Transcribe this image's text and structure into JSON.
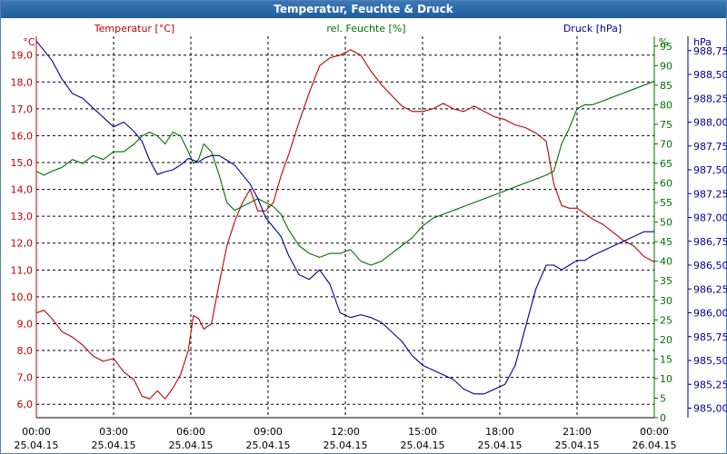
{
  "window": {
    "title": "Temperatur, Feuchte & Druck"
  },
  "chart_data": {
    "type": "line",
    "title": "Temperatur, Feuchte & Druck",
    "colors": {
      "temperature": "#c00000",
      "humidity": "#007000",
      "pressure": "#000096",
      "grid": "#000000",
      "titlebar": "#2a66a6"
    },
    "x_ticks": [
      {
        "time": "00:00",
        "date": "25.04.15",
        "h": 0
      },
      {
        "time": "03:00",
        "date": "25.04.15",
        "h": 3
      },
      {
        "time": "06:00",
        "date": "25.04.15",
        "h": 6
      },
      {
        "time": "09:00",
        "date": "25.04.15",
        "h": 9
      },
      {
        "time": "12:00",
        "date": "25.04.15",
        "h": 12
      },
      {
        "time": "15:00",
        "date": "25.04.15",
        "h": 15
      },
      {
        "time": "18:00",
        "date": "25.04.15",
        "h": 18
      },
      {
        "time": "21:00",
        "date": "25.04.15",
        "h": 21
      },
      {
        "time": "00:00",
        "date": "26.04.15",
        "h": 24
      }
    ],
    "xlim": [
      0,
      24
    ],
    "axes": {
      "temperature": {
        "label": "Temperatur [°C]",
        "unit": "°C",
        "ylim": [
          5.5,
          19.7
        ],
        "ticks": [
          "6,0",
          "7,0",
          "8,0",
          "9,0",
          "10,0",
          "11,0",
          "12,0",
          "13,0",
          "14,0",
          "15,0",
          "16,0",
          "17,0",
          "18,0",
          "19,0"
        ]
      },
      "humidity": {
        "label": "rel. Feuchte [%]",
        "unit": "%",
        "ylim": [
          0,
          97.5
        ],
        "ticks": [
          "0",
          "5",
          "10",
          "15",
          "20",
          "25",
          "30",
          "35",
          "40",
          "45",
          "50",
          "55",
          "60",
          "65",
          "70",
          "75",
          "80",
          "85",
          "90",
          "95"
        ]
      },
      "pressure": {
        "label": "Druck [hPa]",
        "unit": "hPa",
        "ylim": [
          984.9,
          988.9
        ],
        "ticks": [
          "985,00",
          "985,25",
          "985,50",
          "985,75",
          "986,00",
          "986,25",
          "986,50",
          "986,75",
          "987,00",
          "987,25",
          "987,50",
          "987,75",
          "988,00",
          "988,25",
          "988,50",
          "988,75"
        ]
      }
    },
    "series": [
      {
        "name": "Temperatur [°C]",
        "axis": "temperature",
        "x": [
          0,
          0.3,
          0.6,
          1.0,
          1.4,
          1.8,
          2.2,
          2.6,
          3.0,
          3.4,
          3.8,
          4.1,
          4.4,
          4.7,
          5.0,
          5.3,
          5.6,
          5.9,
          6.1,
          6.3,
          6.5,
          6.8,
          7.1,
          7.4,
          7.7,
          8.0,
          8.3,
          8.6,
          8.9,
          9.2,
          9.5,
          9.8,
          10.2,
          10.6,
          11.0,
          11.4,
          11.8,
          12.2,
          12.6,
          13.0,
          13.4,
          13.8,
          14.2,
          14.6,
          15.0,
          15.4,
          15.8,
          16.2,
          16.6,
          17.0,
          17.4,
          17.8,
          18.2,
          18.6,
          19.0,
          19.4,
          19.8,
          20.1,
          20.4,
          20.7,
          21.0,
          21.3,
          21.6,
          22.0,
          22.4,
          22.8,
          23.2,
          23.6,
          24.0
        ],
        "values": [
          9.4,
          9.5,
          9.2,
          8.7,
          8.5,
          8.2,
          7.8,
          7.6,
          7.7,
          7.2,
          6.9,
          6.3,
          6.2,
          6.5,
          6.2,
          6.6,
          7.1,
          8.0,
          9.3,
          9.2,
          8.8,
          9.0,
          10.5,
          11.9,
          12.8,
          13.5,
          14.0,
          13.2,
          13.2,
          13.5,
          14.5,
          15.3,
          16.5,
          17.6,
          18.6,
          18.9,
          19.0,
          19.2,
          19.0,
          18.4,
          17.9,
          17.5,
          17.1,
          16.9,
          16.9,
          17.0,
          17.2,
          17.0,
          16.9,
          17.1,
          16.9,
          16.7,
          16.6,
          16.4,
          16.3,
          16.1,
          15.8,
          14.2,
          13.4,
          13.3,
          13.3,
          13.1,
          12.9,
          12.7,
          12.4,
          12.1,
          11.9,
          11.5,
          11.3
        ]
      },
      {
        "name": "rel. Feuchte [%]",
        "axis": "humidity",
        "x": [
          0,
          0.3,
          0.6,
          1.0,
          1.4,
          1.8,
          2.2,
          2.6,
          3.0,
          3.4,
          3.8,
          4.1,
          4.4,
          4.7,
          5.0,
          5.3,
          5.6,
          5.9,
          6.1,
          6.3,
          6.5,
          6.8,
          7.1,
          7.4,
          7.7,
          8.0,
          8.3,
          8.6,
          8.9,
          9.2,
          9.5,
          9.8,
          10.2,
          10.6,
          11.0,
          11.4,
          11.8,
          12.2,
          12.6,
          13.0,
          13.4,
          13.8,
          14.2,
          14.6,
          15.0,
          15.4,
          15.8,
          16.2,
          16.6,
          17.0,
          17.4,
          17.8,
          18.2,
          18.6,
          19.0,
          19.4,
          19.8,
          20.1,
          20.4,
          20.7,
          21.0,
          21.3,
          21.6,
          22.0,
          22.4,
          22.8,
          23.2,
          23.6,
          24.0
        ],
        "values": [
          63,
          62,
          63,
          64,
          66,
          65,
          67,
          66,
          68,
          68,
          70,
          72,
          73,
          72,
          70,
          73,
          72,
          68,
          65,
          66,
          70,
          68,
          62,
          55,
          53,
          54,
          55,
          56,
          55,
          54,
          52,
          48,
          44,
          42,
          41,
          42,
          42,
          43,
          40,
          39,
          40,
          42,
          44,
          46,
          49,
          51,
          52,
          53,
          54,
          55,
          56,
          57,
          58,
          59,
          60,
          61,
          62,
          63,
          70,
          74,
          79,
          80,
          80,
          81,
          82,
          83,
          84,
          85,
          86
        ]
      },
      {
        "name": "Druck [hPa]",
        "axis": "pressure",
        "x": [
          0,
          0.3,
          0.6,
          1.0,
          1.4,
          1.8,
          2.2,
          2.6,
          3.0,
          3.4,
          3.8,
          4.1,
          4.4,
          4.7,
          5.0,
          5.3,
          5.6,
          5.9,
          6.1,
          6.3,
          6.5,
          6.8,
          7.1,
          7.4,
          7.7,
          8.0,
          8.3,
          8.6,
          8.9,
          9.2,
          9.5,
          9.8,
          10.2,
          10.6,
          11.0,
          11.4,
          11.8,
          12.2,
          12.6,
          13.0,
          13.4,
          13.8,
          14.2,
          14.6,
          15.0,
          15.4,
          15.8,
          16.2,
          16.6,
          17.0,
          17.4,
          17.8,
          18.2,
          18.6,
          19.0,
          19.4,
          19.8,
          20.1,
          20.4,
          20.7,
          21.0,
          21.3,
          21.6,
          22.0,
          22.4,
          22.8,
          23.2,
          23.6,
          24.0
        ],
        "values": [
          988.85,
          988.75,
          988.65,
          988.45,
          988.3,
          988.25,
          988.15,
          988.05,
          987.95,
          988.0,
          987.9,
          987.8,
          987.6,
          987.45,
          987.48,
          987.5,
          987.55,
          987.62,
          987.6,
          987.58,
          987.62,
          987.65,
          987.65,
          987.6,
          987.55,
          987.45,
          987.35,
          987.2,
          987.0,
          986.9,
          986.8,
          986.6,
          986.4,
          986.35,
          986.45,
          986.3,
          986.0,
          985.95,
          985.98,
          985.95,
          985.9,
          985.8,
          985.7,
          985.55,
          985.45,
          985.4,
          985.35,
          985.3,
          985.2,
          985.15,
          985.15,
          985.2,
          985.25,
          985.45,
          985.85,
          986.25,
          986.5,
          986.5,
          986.45,
          986.5,
          986.55,
          986.55,
          986.6,
          986.65,
          986.7,
          986.75,
          986.8,
          986.85,
          986.85
        ]
      }
    ]
  }
}
